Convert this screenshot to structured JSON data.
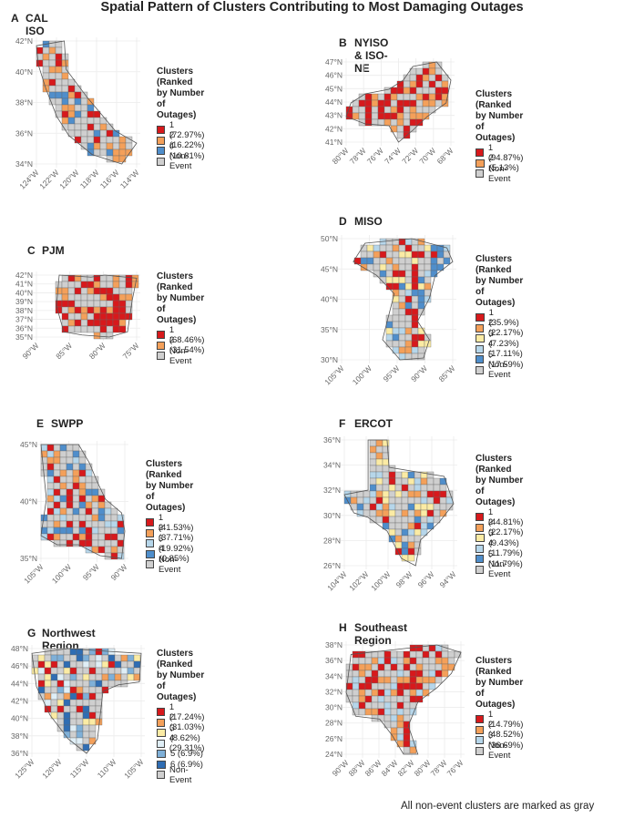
{
  "title": "Spatial Pattern of Clusters Contributing to Most Damaging Outages",
  "footer": "All non-event clusters are marked as gray",
  "colors": {
    "c1": "#d7191c",
    "c2": "#f4a05a",
    "c3": "#fbeba4",
    "c4": "#b6d6ea",
    "c5": "#4f8ecb",
    "c6": "#2f6db3",
    "grey": "#cfcfcf"
  },
  "chart_data": [
    {
      "type": "map",
      "letter": "A",
      "name": "CAL ISO",
      "legend_title": "Clusters\n(Ranked by Number of Outages)",
      "legend": [
        {
          "label": "1 (72.97%)",
          "color": "#d7191c"
        },
        {
          "label": "2 (16.22%)",
          "color": "#f4a05a"
        },
        {
          "label": "4 (10.81%)",
          "color": "#4f8ecb"
        },
        {
          "label": "Non-Event",
          "color": "#cfcfcf"
        }
      ],
      "x_ticks": [
        "124°W",
        "122°W",
        "120°W",
        "118°W",
        "116°W",
        "114°W"
      ],
      "y_ticks": [
        "42°N",
        "40°N",
        "38°N",
        "36°N",
        "34°N"
      ]
    },
    {
      "type": "map",
      "letter": "B",
      "name": "NYISO & ISO-NE",
      "legend_title": "Clusters\n(Ranked by Number of Outages)",
      "legend": [
        {
          "label": "1 (94.87%)",
          "color": "#d7191c"
        },
        {
          "label": "2 (5.13%)",
          "color": "#f4a05a"
        },
        {
          "label": "Non-Event",
          "color": "#cfcfcf"
        }
      ],
      "x_ticks": [
        "80°W",
        "78°W",
        "76°W",
        "74°W",
        "72°W",
        "70°W",
        "68°W"
      ],
      "y_ticks": [
        "47°N",
        "46°N",
        "45°N",
        "44°N",
        "43°N",
        "42°N",
        "41°N"
      ]
    },
    {
      "type": "map",
      "letter": "C",
      "name": "PJM",
      "legend_title": "Clusters\n(Ranked by Number of Outages)",
      "legend": [
        {
          "label": "1 (68.46%)",
          "color": "#d7191c"
        },
        {
          "label": "2 (31.54%)",
          "color": "#f4a05a"
        },
        {
          "label": "Non-Event",
          "color": "#cfcfcf"
        }
      ],
      "x_ticks": [
        "90°W",
        "85°W",
        "80°W",
        "75°W"
      ],
      "y_ticks": [
        "42°N",
        "41°N",
        "40°N",
        "39°N",
        "38°N",
        "37°N",
        "36°N",
        "35°N"
      ]
    },
    {
      "type": "map",
      "letter": "D",
      "name": "MISO",
      "legend_title": "Clusters\n(Ranked by Number of Outages)",
      "legend": [
        {
          "label": "1 (35.9%)",
          "color": "#d7191c"
        },
        {
          "label": "2 (22.17%)",
          "color": "#f4a05a"
        },
        {
          "label": "3 (7.23%)",
          "color": "#fbeba4"
        },
        {
          "label": "4 (17.11%)",
          "color": "#b6d6ea"
        },
        {
          "label": "5 (17.59%)",
          "color": "#4f8ecb"
        },
        {
          "label": "Non-Event",
          "color": "#cfcfcf"
        }
      ],
      "x_ticks": [
        "105°W",
        "100°W",
        "95°W",
        "90°W",
        "85°W"
      ],
      "y_ticks": [
        "50°N",
        "45°N",
        "40°N",
        "35°N",
        "30°N"
      ]
    },
    {
      "type": "map",
      "letter": "E",
      "name": "SWPP",
      "legend_title": "Clusters\n(Ranked by Number of Outages)",
      "legend": [
        {
          "label": "1 (41.53%)",
          "color": "#d7191c"
        },
        {
          "label": "2 (37.71%)",
          "color": "#f4a05a"
        },
        {
          "label": "3 (19.92%)",
          "color": "#b6d6ea"
        },
        {
          "label": "4 (0.85%)",
          "color": "#4f8ecb"
        },
        {
          "label": "Non-Event",
          "color": "#cfcfcf"
        }
      ],
      "x_ticks": [
        "105°W",
        "100°W",
        "95°W",
        "90°W"
      ],
      "y_ticks": [
        "45°N",
        "40°N",
        "35°N"
      ]
    },
    {
      "type": "map",
      "letter": "F",
      "name": "ERCOT",
      "legend_title": "Clusters\n(Ranked by Number of Outages)",
      "legend": [
        {
          "label": "1 (44.81%)",
          "color": "#d7191c"
        },
        {
          "label": "2 (22.17%)",
          "color": "#f4a05a"
        },
        {
          "label": "3 (9.43%)",
          "color": "#fbeba4"
        },
        {
          "label": "4 (11.79%)",
          "color": "#b6d6ea"
        },
        {
          "label": "5 (11.79%)",
          "color": "#4f8ecb"
        },
        {
          "label": "Non-Event",
          "color": "#cfcfcf"
        }
      ],
      "x_ticks": [
        "104°W",
        "102°W",
        "100°W",
        "98°W",
        "96°W",
        "94°W"
      ],
      "y_ticks": [
        "36°N",
        "34°N",
        "32°N",
        "30°N",
        "28°N",
        "26°N"
      ]
    },
    {
      "type": "map",
      "letter": "G",
      "name": "Northwest Region",
      "legend_title": "Clusters\n(Ranked by Number of Outages)",
      "legend": [
        {
          "label": "1 (17.24%)",
          "color": "#d7191c"
        },
        {
          "label": "2 (31.03%)",
          "color": "#f4a05a"
        },
        {
          "label": "3 (8.62%)",
          "color": "#fbeba4"
        },
        {
          "label": "4 (29.31%)",
          "color": "#dfeef6"
        },
        {
          "label": "5 (6.9%)",
          "color": "#7fb0d8"
        },
        {
          "label": "6 (6.9%)",
          "color": "#2f6db3"
        },
        {
          "label": "Non-Event",
          "color": "#cfcfcf"
        }
      ],
      "x_ticks": [
        "125°W",
        "120°W",
        "115°W",
        "110°W",
        "105°W"
      ],
      "y_ticks": [
        "48°N",
        "46°N",
        "44°N",
        "42°N",
        "40°N",
        "38°N",
        "36°N"
      ]
    },
    {
      "type": "map",
      "letter": "H",
      "name": "Southeast Region",
      "legend_title": "Clusters\n(Ranked by Number of Outages)",
      "legend": [
        {
          "label": "1 (14.79%)",
          "color": "#d7191c"
        },
        {
          "label": "2 (48.52%)",
          "color": "#f4a05a"
        },
        {
          "label": "3 (36.69%)",
          "color": "#b6d6ea"
        },
        {
          "label": "Non-Event",
          "color": "#cfcfcf"
        }
      ],
      "x_ticks": [
        "90°W",
        "88°W",
        "86°W",
        "84°W",
        "82°W",
        "80°W",
        "78°W",
        "76°W"
      ],
      "y_ticks": [
        "38°N",
        "36°N",
        "34°N",
        "32°N",
        "30°N",
        "28°N",
        "26°N",
        "24°N"
      ]
    }
  ]
}
